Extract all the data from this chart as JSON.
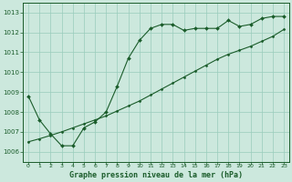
{
  "title": "Graphe pression niveau de la mer (hPa)",
  "background_color": "#cce8dd",
  "grid_color": "#99ccbb",
  "line_color": "#1a5c2a",
  "xlim": [
    -0.5,
    23.5
  ],
  "ylim": [
    1005.5,
    1013.5
  ],
  "xticks": [
    0,
    1,
    2,
    3,
    4,
    5,
    6,
    7,
    8,
    9,
    10,
    11,
    12,
    13,
    14,
    15,
    16,
    17,
    18,
    19,
    20,
    21,
    22,
    23
  ],
  "yticks": [
    1006,
    1007,
    1008,
    1009,
    1010,
    1011,
    1012,
    1013
  ],
  "series1_x": [
    0,
    1,
    2,
    3,
    4,
    5,
    6,
    7,
    8,
    9,
    10,
    11,
    12,
    13,
    14,
    15,
    16,
    17,
    18,
    19,
    20,
    21,
    22,
    23
  ],
  "series1_y": [
    1008.8,
    1007.6,
    1006.9,
    1006.3,
    1006.3,
    1007.2,
    1007.5,
    1008.0,
    1009.3,
    1010.7,
    1011.6,
    1012.2,
    1012.4,
    1012.4,
    1012.1,
    1012.2,
    1012.2,
    1012.2,
    1012.6,
    1012.3,
    1012.4,
    1012.7,
    1012.8,
    1012.8
  ],
  "series2_x": [
    0,
    1,
    2,
    3,
    4,
    5,
    6,
    7,
    8,
    9,
    10,
    11,
    12,
    13,
    14,
    15,
    16,
    17,
    18,
    19,
    20,
    21,
    22,
    23
  ],
  "series2_y": [
    1006.5,
    1006.65,
    1006.82,
    1007.0,
    1007.2,
    1007.4,
    1007.6,
    1007.8,
    1008.05,
    1008.3,
    1008.55,
    1008.85,
    1009.15,
    1009.45,
    1009.75,
    1010.05,
    1010.35,
    1010.65,
    1010.9,
    1011.1,
    1011.3,
    1011.55,
    1011.8,
    1012.15
  ]
}
